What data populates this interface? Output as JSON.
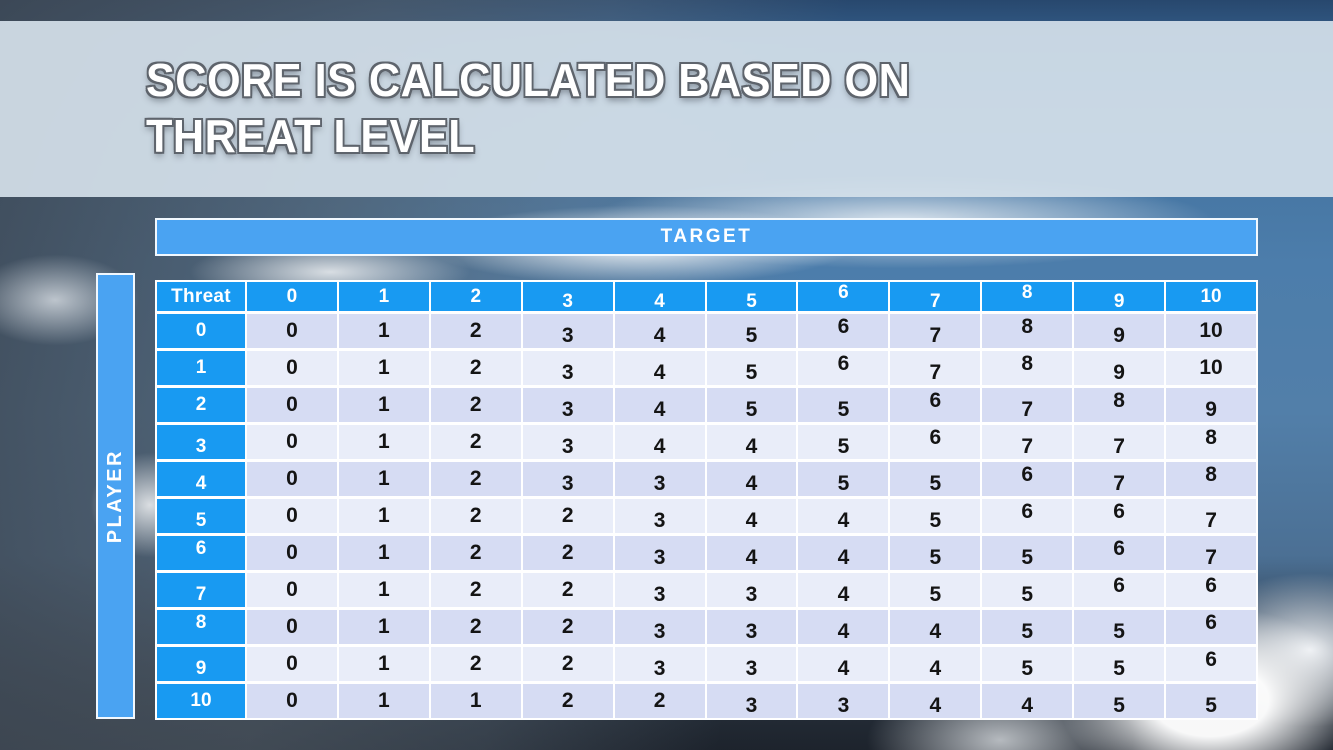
{
  "title": {
    "line1": "SCORE IS CALCULATED BASED ON",
    "line2": "THREAT LEVEL"
  },
  "matrix": {
    "target_axis_label": "TARGET",
    "player_axis_label": "PLAYER",
    "corner_label": "Threat",
    "column_headers": [
      "0",
      "1",
      "2",
      "3",
      "4",
      "5",
      "6",
      "7",
      "8",
      "9",
      "10"
    ],
    "row_headers": [
      "0",
      "1",
      "2",
      "3",
      "4",
      "5",
      "6",
      "7",
      "8",
      "9",
      "10"
    ],
    "scores": [
      [
        0,
        1,
        2,
        3,
        4,
        5,
        6,
        7,
        8,
        9,
        10
      ],
      [
        0,
        1,
        2,
        3,
        4,
        5,
        6,
        7,
        8,
        9,
        10
      ],
      [
        0,
        1,
        2,
        3,
        4,
        5,
        5,
        6,
        7,
        8,
        9
      ],
      [
        0,
        1,
        2,
        3,
        4,
        4,
        5,
        6,
        7,
        7,
        8
      ],
      [
        0,
        1,
        2,
        3,
        3,
        4,
        5,
        5,
        6,
        7,
        8
      ],
      [
        0,
        1,
        2,
        2,
        3,
        4,
        4,
        5,
        6,
        6,
        7
      ],
      [
        0,
        1,
        2,
        2,
        3,
        4,
        4,
        5,
        5,
        6,
        7
      ],
      [
        0,
        1,
        2,
        2,
        3,
        3,
        4,
        5,
        5,
        6,
        6
      ],
      [
        0,
        1,
        2,
        2,
        3,
        3,
        4,
        4,
        5,
        5,
        6
      ],
      [
        0,
        1,
        2,
        2,
        3,
        3,
        4,
        4,
        5,
        5,
        6
      ],
      [
        0,
        1,
        1,
        2,
        2,
        3,
        3,
        4,
        4,
        5,
        5
      ]
    ]
  },
  "colors": {
    "axis_bar_blue": "#4aa3f2",
    "table_header_blue": "#189af2",
    "row_shade_dark": "#d6dcf3",
    "row_shade_light": "#e9edf9",
    "gridline_white": "#ffffff",
    "title_band": "#d5e1ea",
    "cell_text": "#141414",
    "header_text": "#ffffff"
  }
}
